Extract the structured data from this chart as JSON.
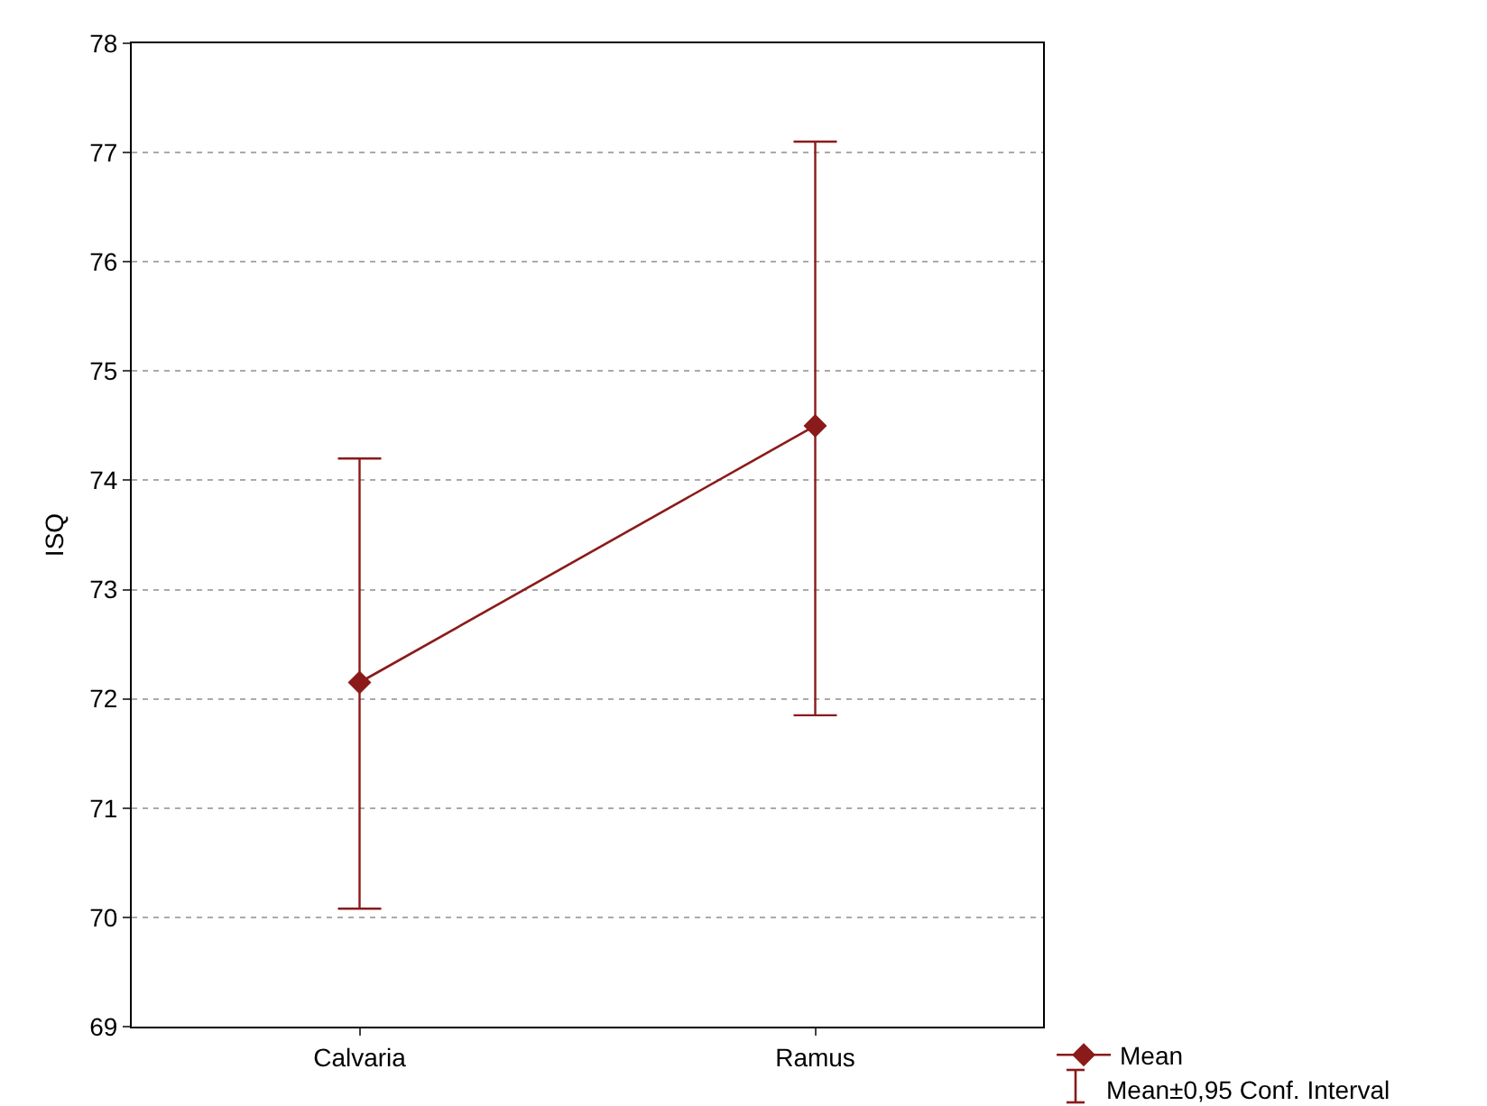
{
  "chart_data": {
    "type": "line",
    "ylabel": "ISQ",
    "categories": [
      "Calvaria",
      "Ramus"
    ],
    "series": [
      {
        "name": "Mean",
        "color": "#8b1a1a",
        "values": [
          72.15,
          74.5
        ],
        "errors": [
          [
            70.08,
            74.2
          ],
          [
            71.85,
            77.1
          ]
        ]
      }
    ],
    "ylim": [
      69,
      78
    ],
    "yticks": [
      69,
      70,
      71,
      72,
      73,
      74,
      75,
      76,
      77,
      78
    ],
    "grid": "y",
    "marker": "diamond",
    "line_style": "solid",
    "legend": "bottom right",
    "annotations": [
      "Mean±0,95 Conf. Interval"
    ]
  }
}
